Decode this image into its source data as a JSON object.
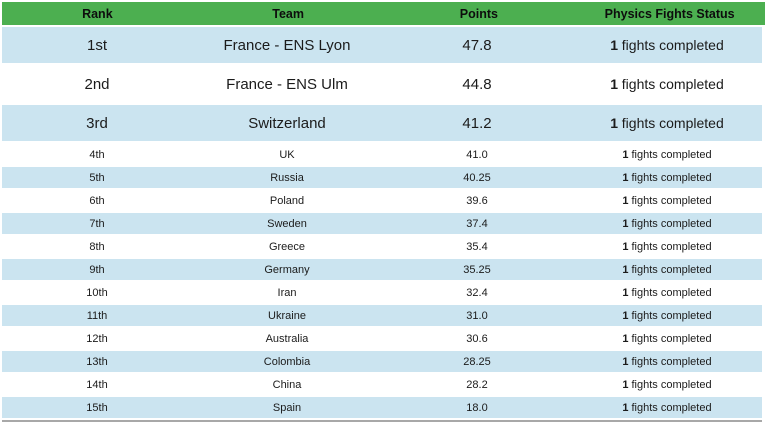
{
  "header": {
    "columns": [
      "Rank",
      "Team",
      "Points",
      "Physics Fights Status"
    ]
  },
  "status_suffix": "fights completed",
  "rows": [
    {
      "rank": "1st",
      "team": "France - ENS Lyon",
      "points": "47.8",
      "fights": "1"
    },
    {
      "rank": "2nd",
      "team": "France - ENS Ulm",
      "points": "44.8",
      "fights": "1"
    },
    {
      "rank": "3rd",
      "team": "Switzerland",
      "points": "41.2",
      "fights": "1"
    },
    {
      "rank": "4th",
      "team": "UK",
      "points": "41.0",
      "fights": "1"
    },
    {
      "rank": "5th",
      "team": "Russia",
      "points": "40.25",
      "fights": "1"
    },
    {
      "rank": "6th",
      "team": "Poland",
      "points": "39.6",
      "fights": "1"
    },
    {
      "rank": "7th",
      "team": "Sweden",
      "points": "37.4",
      "fights": "1"
    },
    {
      "rank": "8th",
      "team": "Greece",
      "points": "35.4",
      "fights": "1"
    },
    {
      "rank": "9th",
      "team": "Germany",
      "points": "35.25",
      "fights": "1"
    },
    {
      "rank": "10th",
      "team": "Iran",
      "points": "32.4",
      "fights": "1"
    },
    {
      "rank": "11th",
      "team": "Ukraine",
      "points": "31.0",
      "fights": "1"
    },
    {
      "rank": "12th",
      "team": "Australia",
      "points": "30.6",
      "fights": "1"
    },
    {
      "rank": "13th",
      "team": "Colombia",
      "points": "28.25",
      "fights": "1"
    },
    {
      "rank": "14th",
      "team": "China",
      "points": "28.2",
      "fights": "1"
    },
    {
      "rank": "15th",
      "team": "Spain",
      "points": "18.0",
      "fights": "1"
    }
  ],
  "colors": {
    "header_bg": "#4CAF50",
    "row_highlight_bg": "#CBE4F0",
    "row_alt_bg": "#FFFFFF",
    "text": "#1B1B1B",
    "bottom_border": "#A8A8A8"
  }
}
